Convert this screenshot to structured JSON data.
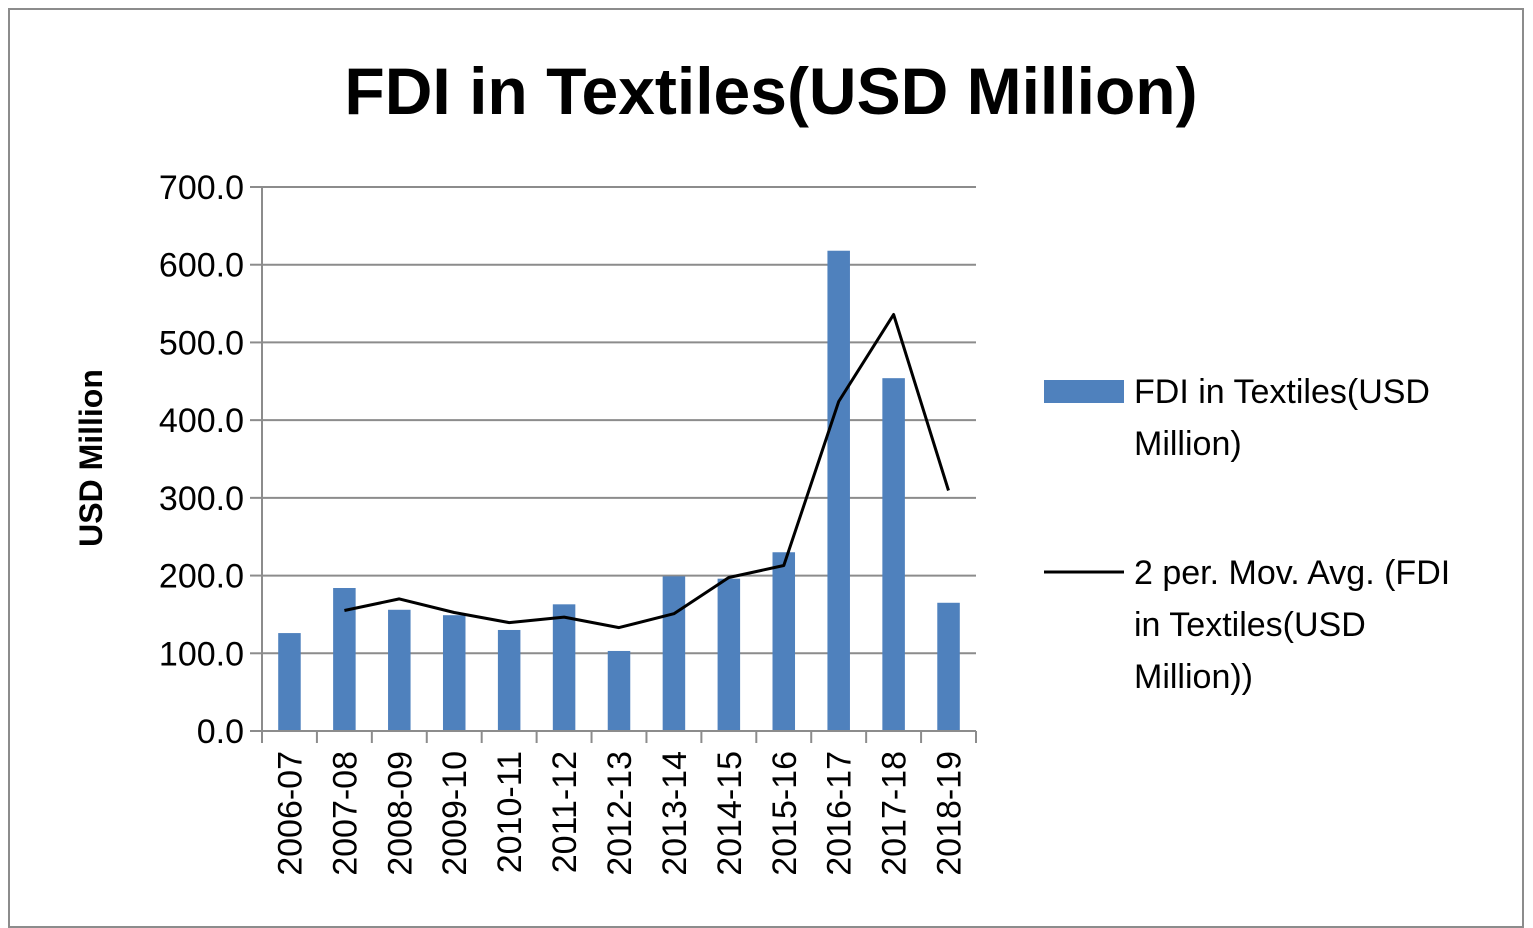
{
  "chart_data": {
    "type": "bar",
    "title": "FDI in Textiles(USD Million)",
    "xlabel": "",
    "ylabel": "USD Million",
    "ylim": [
      0,
      700
    ],
    "y_ticks": [
      "0.0",
      "100.0",
      "200.0",
      "300.0",
      "400.0",
      "500.0",
      "600.0",
      "700.0"
    ],
    "categories": [
      "2006-07",
      "2007-08",
      "2008-09",
      "2009-10",
      "2010-11",
      "2011-12",
      "2012-13",
      "2013-14",
      "2014-15",
      "2015-16",
      "2016-17",
      "2017-18",
      "2018-19"
    ],
    "grid": true,
    "legend_position": "right",
    "series": [
      {
        "name": "FDI in Textiles(USD Million)",
        "kind": "bar",
        "color": "#4f81bd",
        "values": [
          126,
          184,
          156,
          149,
          130,
          163,
          103,
          199,
          196,
          230,
          618,
          454,
          165
        ]
      },
      {
        "name": "2 per. Mov. Avg. (FDI in Textiles(USD Million))",
        "kind": "line",
        "color": "#000000",
        "values": [
          null,
          155,
          170,
          152.5,
          139.5,
          146.5,
          133,
          151,
          197.5,
          213,
          424,
          536,
          309.5
        ]
      }
    ],
    "legend": {
      "bar_label_lines": [
        "FDI in Textiles(USD",
        "Million)"
      ],
      "line_label_lines": [
        "2 per. Mov. Avg. (FDI",
        "in Textiles(USD",
        "Million))"
      ]
    }
  }
}
